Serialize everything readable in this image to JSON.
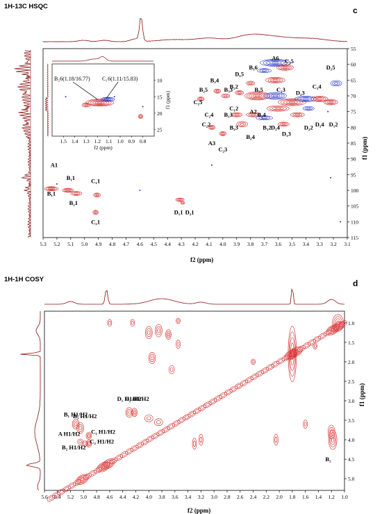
{
  "chart_data": [
    {
      "type": "heatmap",
      "title": "1H-13C HSQC",
      "panel_label": "c",
      "xlabel": "f2 (ppm)",
      "ylabel": "f1 (ppm)",
      "xlim": [
        5.3,
        3.1
      ],
      "ylim": [
        55,
        115
      ],
      "x_ticks": [
        "5.3",
        "5.2",
        "5.1",
        "5.0",
        "4.9",
        "4.8",
        "4.7",
        "4.6",
        "4.5",
        "4.4",
        "4.3",
        "4.2",
        "4.1",
        "4.0",
        "3.9",
        "3.8",
        "3.7",
        "3.6",
        "3.5",
        "3.4",
        "3.3",
        "3.2",
        "3.1"
      ],
      "y_ticks": [
        "55",
        "60",
        "65",
        "70",
        "75",
        "80",
        "85",
        "90",
        "95",
        "100",
        "105",
        "110",
        "115"
      ],
      "colors": {
        "positive": "#d42020",
        "negative": "#2030c8",
        "projection": "#8a1010"
      },
      "annotations": [
        {
          "text": "A1",
          "x": 5.22,
          "y": 92
        },
        {
          "text": "B₁1",
          "x": 5.1,
          "y": 96
        },
        {
          "text": "B₁1",
          "x": 5.24,
          "y": 101
        },
        {
          "text": "B₂1",
          "x": 5.08,
          "y": 104
        },
        {
          "text": "C₁1",
          "x": 4.92,
          "y": 97
        },
        {
          "text": "C₂1",
          "x": 4.92,
          "y": 110
        },
        {
          "text": "D₁1",
          "x": 4.32,
          "y": 107
        },
        {
          "text": "D₂1",
          "x": 4.24,
          "y": 107
        },
        {
          "text": "A6",
          "x": 3.62,
          "y": 58
        },
        {
          "text": "C₂5",
          "x": 3.52,
          "y": 59
        },
        {
          "text": "B₃6",
          "x": 3.78,
          "y": 61
        },
        {
          "text": "D₁5",
          "x": 3.22,
          "y": 61
        },
        {
          "text": "B₃4",
          "x": 4.06,
          "y": 65
        },
        {
          "text": "D₁5",
          "x": 3.88,
          "y": 63
        },
        {
          "text": "B₂2",
          "x": 3.92,
          "y": 67
        },
        {
          "text": "B₂5",
          "x": 4.14,
          "y": 68
        },
        {
          "text": "B₃3",
          "x": 3.96,
          "y": 68
        },
        {
          "text": "C₁3",
          "x": 3.58,
          "y": 68
        },
        {
          "text": "B₃5",
          "x": 3.74,
          "y": 68
        },
        {
          "text": "D₂3",
          "x": 3.44,
          "y": 69
        },
        {
          "text": "C₁4",
          "x": 3.32,
          "y": 67
        },
        {
          "text": "C₁5",
          "x": 4.18,
          "y": 72
        },
        {
          "text": "C₁2",
          "x": 3.92,
          "y": 74
        },
        {
          "text": "A2",
          "x": 3.78,
          "y": 75
        },
        {
          "text": "B₂3",
          "x": 3.92,
          "y": 80
        },
        {
          "text": "B₁3",
          "x": 3.96,
          "y": 76
        },
        {
          "text": "B₁4",
          "x": 3.72,
          "y": 76
        },
        {
          "text": "C₂4",
          "x": 4.1,
          "y": 76
        },
        {
          "text": "C₂2",
          "x": 4.12,
          "y": 79
        },
        {
          "text": "B₂4",
          "x": 3.8,
          "y": 83
        },
        {
          "text": "B₁2",
          "x": 3.68,
          "y": 80
        },
        {
          "text": "D₂4",
          "x": 3.62,
          "y": 80
        },
        {
          "text": "D₁3",
          "x": 3.54,
          "y": 82
        },
        {
          "text": "D₂2",
          "x": 3.38,
          "y": 80
        },
        {
          "text": "D₁4",
          "x": 3.3,
          "y": 79
        },
        {
          "text": "D₁2",
          "x": 3.2,
          "y": 79
        },
        {
          "text": "A3",
          "x": 4.08,
          "y": 85
        },
        {
          "text": "C₂3",
          "x": 4.0,
          "y": 87
        }
      ],
      "inset": {
        "xlabel": "f2 (ppm)",
        "ylabel": "f1 (ppm)",
        "xlim": [
          1.6,
          0.7
        ],
        "ylim": [
          5,
          27
        ],
        "x_ticks": [
          "1.5",
          "1.4",
          "1.3",
          "1.2",
          "1.1",
          "1.0",
          "0.9",
          "0.8"
        ],
        "y_ticks": [
          "10",
          "15",
          "20",
          "25"
        ],
        "annotations": [
          {
            "text": "B₂6(1.18/16.77)"
          },
          {
            "text": "C₁6(1.11/15.83)"
          }
        ]
      }
    },
    {
      "type": "heatmap",
      "title": "1H-1H COSY",
      "panel_label": "d",
      "xlabel": "f2 (ppm)",
      "ylabel": "f1 (ppm)",
      "xlim": [
        5.6,
        1.0
      ],
      "ylim": [
        0.7,
        5.3
      ],
      "x_ticks": [
        "5.6",
        "5.4",
        "5.2",
        "5.0",
        "4.8",
        "4.6",
        "4.4",
        "4.2",
        "4.0",
        "3.8",
        "3.6",
        "3.4",
        "3.2",
        "3.0",
        "2.8",
        "2.6",
        "2.4",
        "2.2",
        "2.0",
        "1.8",
        "1.6",
        "1.4",
        "1.2",
        "1.0"
      ],
      "y_ticks": [
        "1.0",
        "1.5",
        "2.0",
        "2.5",
        "3.0",
        "3.5",
        "4.0",
        "4.5",
        "5.0"
      ],
      "colors": {
        "contour": "#d42020",
        "projection": "#8a1010"
      },
      "annotations": [
        {
          "text": "D₁ H1/H2"
        },
        {
          "text": "D₂ H1/H2"
        },
        {
          "text": "B₁ H1/H2"
        },
        {
          "text": "B₃ H1/H2"
        },
        {
          "text": "C₁ H1/H2"
        },
        {
          "text": "A H1/H2"
        },
        {
          "text": "C₂ H1/H2"
        },
        {
          "text": "B₂ H1/H2"
        },
        {
          "text": "B₂"
        }
      ]
    }
  ]
}
